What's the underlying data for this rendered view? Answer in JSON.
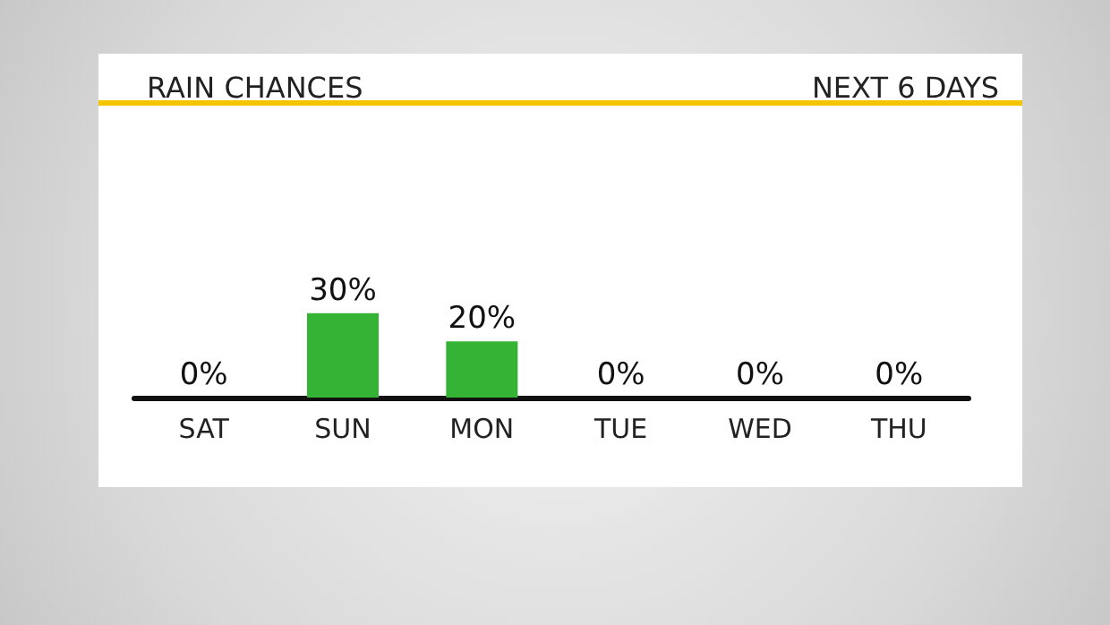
{
  "chart_data": {
    "type": "bar",
    "title": "RAIN CHANCES",
    "subtitle": "NEXT 6 DAYS",
    "categories": [
      "SAT",
      "SUN",
      "MON",
      "TUE",
      "WED",
      "THU"
    ],
    "values": [
      0,
      30,
      20,
      0,
      0,
      0
    ],
    "value_labels": [
      "0%",
      "30%",
      "20%",
      "0%",
      "0%",
      "0%"
    ],
    "color": "#35b335"
  }
}
